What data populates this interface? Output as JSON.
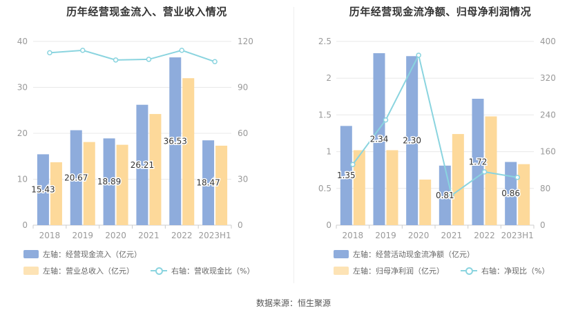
{
  "source_label": "数据来源：恒生聚源",
  "colors": {
    "bar1": "#8eacdc",
    "bar2": "#fdd99a",
    "line": "#8ad4df",
    "grid": "#e8e8e8",
    "axis": "#999999"
  },
  "chart_data": [
    {
      "type": "bar",
      "title": "历年经营现金流入、营业收入情况",
      "categories": [
        "2018",
        "2019",
        "2020",
        "2021",
        "2022",
        "2023H1"
      ],
      "left_axis": {
        "ticks": [
          "0",
          "10",
          "20",
          "30",
          "40"
        ],
        "ylim": [
          0,
          40
        ]
      },
      "right_axis": {
        "ticks": [
          "0",
          "30",
          "60",
          "90",
          "120"
        ],
        "ylim": [
          0,
          120
        ]
      },
      "series": [
        {
          "name": "左轴：经营现金流入（亿元）",
          "kind": "bar",
          "axis": "left",
          "values": [
            15.43,
            20.67,
            18.89,
            26.21,
            36.53,
            18.47
          ],
          "labels": [
            "15.43",
            "20.67",
            "18.89",
            "26.21",
            "36.53",
            "18.47"
          ]
        },
        {
          "name": "左轴：营业总收入（亿元）",
          "kind": "bar",
          "axis": "left",
          "values": [
            13.7,
            18.1,
            17.5,
            24.2,
            32.0,
            17.3
          ]
        },
        {
          "name": "右轴：营收现金比（%）",
          "kind": "line",
          "axis": "right",
          "values": [
            112.6,
            114.2,
            107.9,
            108.3,
            114.2,
            106.8
          ]
        }
      ]
    },
    {
      "type": "bar",
      "title": "历年经营现金流净额、归母净利润情况",
      "categories": [
        "2018",
        "2019",
        "2020",
        "2021",
        "2022",
        "2023H1"
      ],
      "left_axis": {
        "ticks": [
          "0",
          "0.5",
          "1",
          "1.5",
          "2",
          "2.5"
        ],
        "ylim": [
          0,
          2.5
        ]
      },
      "right_axis": {
        "ticks": [
          "0",
          "80",
          "160",
          "240",
          "320",
          "400"
        ],
        "ylim": [
          0,
          400
        ]
      },
      "series": [
        {
          "name": "左轴：经营活动现金流净额（亿元）",
          "kind": "bar",
          "axis": "left",
          "values": [
            1.35,
            2.34,
            2.3,
            0.81,
            1.72,
            0.86
          ],
          "labels": [
            "1.35",
            "2.34",
            "2.30",
            "0.81",
            "1.72",
            "0.86"
          ]
        },
        {
          "name": "左轴：归母净利润（亿元）",
          "kind": "bar",
          "axis": "left",
          "values": [
            1.02,
            1.02,
            0.62,
            1.24,
            1.48,
            0.83
          ]
        },
        {
          "name": "右轴：净现比（%）",
          "kind": "line",
          "axis": "right",
          "values": [
            132,
            229,
            370,
            65,
            116,
            104
          ]
        }
      ]
    }
  ]
}
